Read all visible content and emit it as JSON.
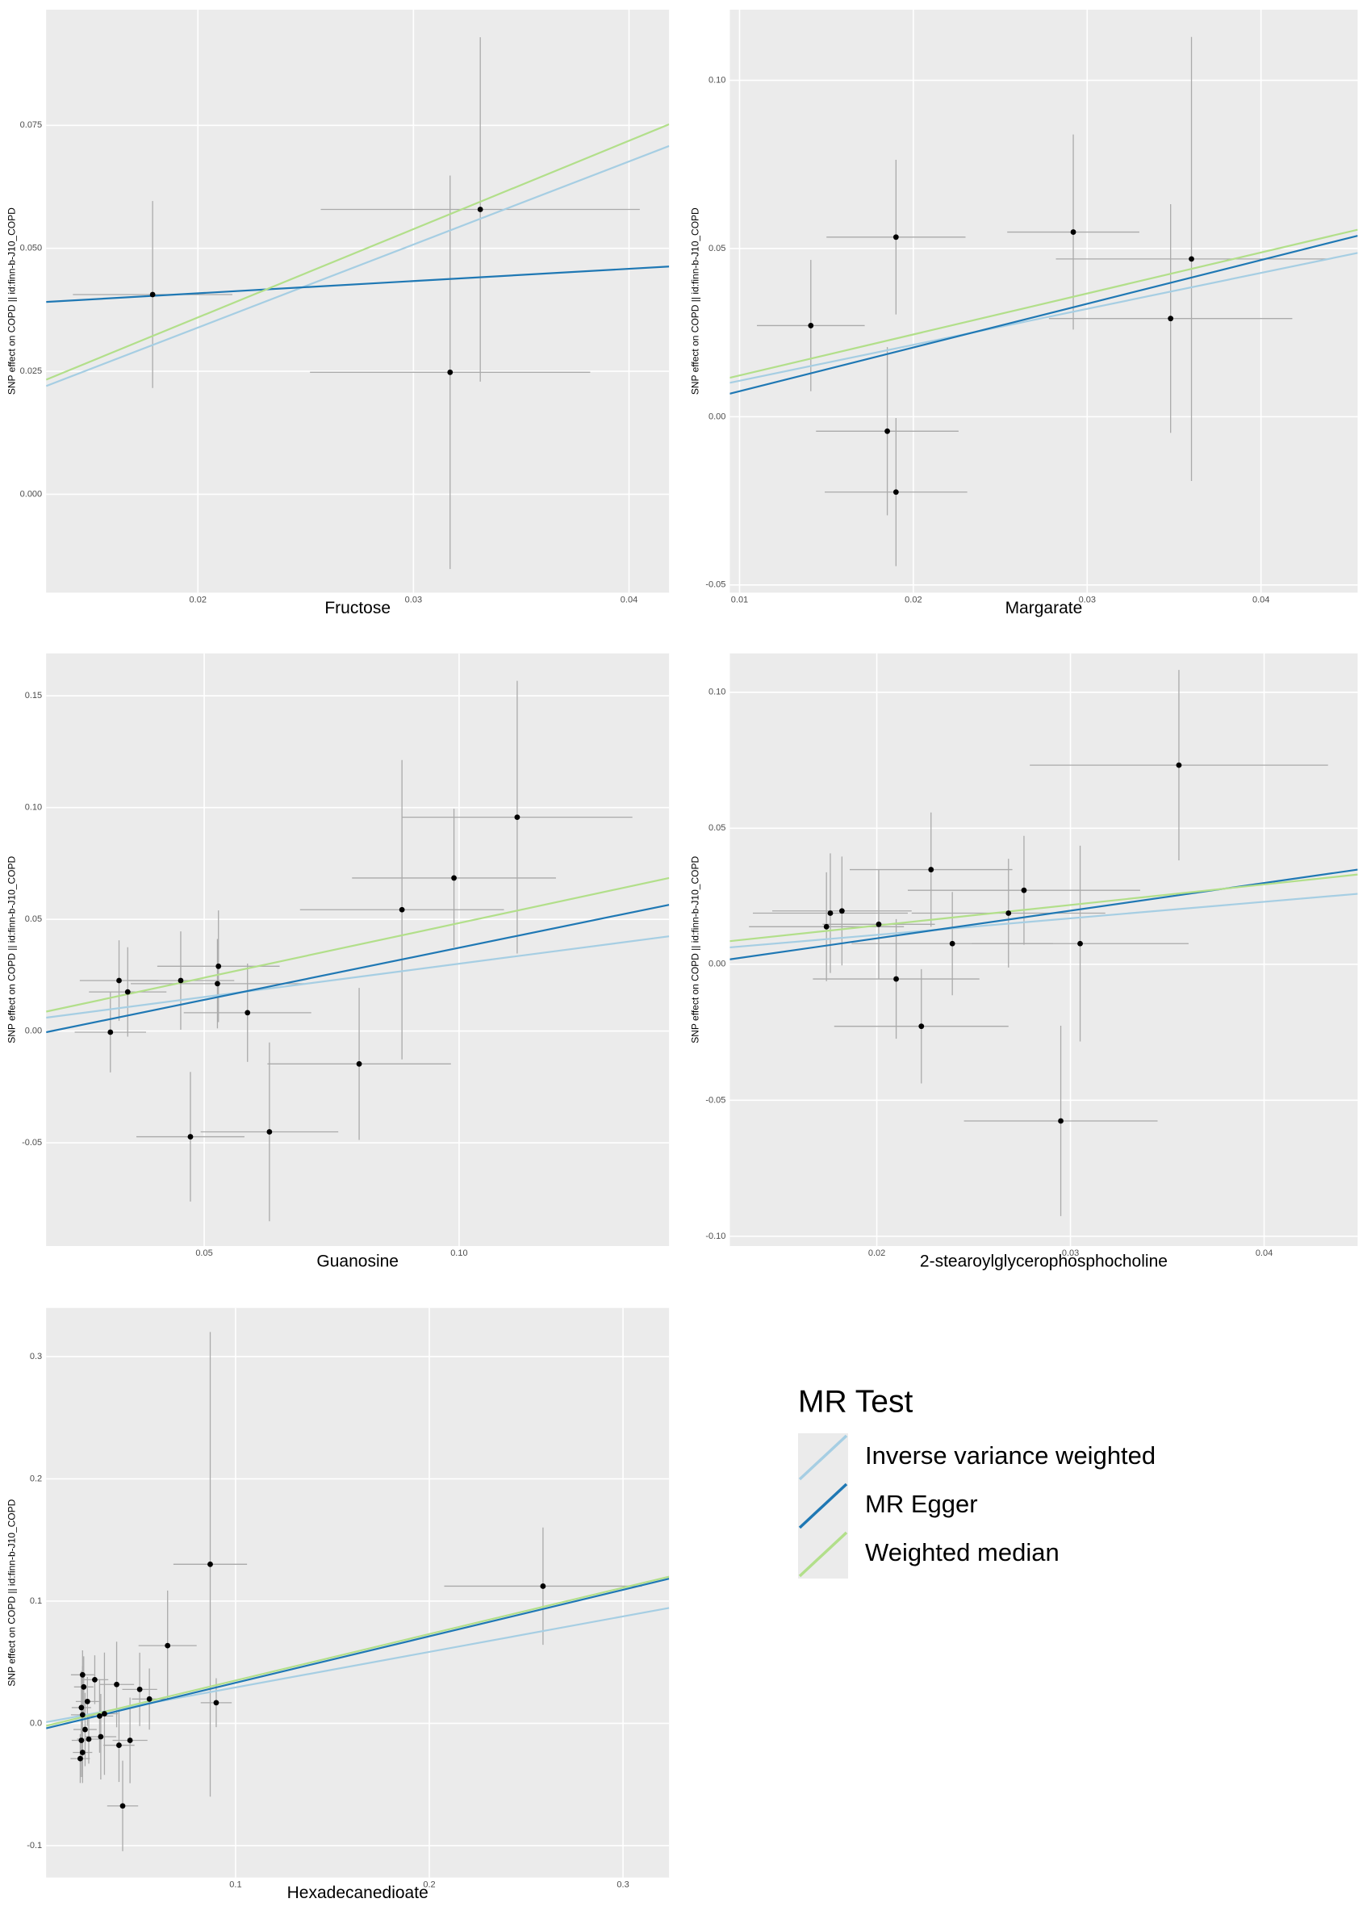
{
  "chart_data": [
    {
      "type": "scatter",
      "xlabel": "Fructose",
      "ylabel": "SNP effect on COPD || id:finn-b-J10_COPD",
      "xlim": [
        0.01296,
        0.04186
      ],
      "ylim": [
        -0.02,
        0.0985
      ],
      "xticks": [
        0.02,
        0.03,
        0.04
      ],
      "yticks": [
        {
          "value": 0,
          "label": "0.000"
        },
        {
          "value": 0.025,
          "label": "0.025"
        },
        {
          "value": 0.05,
          "label": "0.050"
        },
        {
          "value": 0.075,
          "label": "0.075"
        }
      ],
      "x": [
        0.0179,
        0.0331,
        0.0317
      ],
      "values": [
        0.0406,
        0.0579,
        0.0248
      ],
      "xerr": [
        0.0037,
        0.0074,
        0.0065
      ],
      "yerr": [
        0.019,
        0.035,
        0.04
      ],
      "fits": [
        {
          "x": [
            0.01296,
            0.04186
          ],
          "values": [
            0.022,
            0.0708
          ]
        },
        {
          "x": [
            0.01296,
            0.04186
          ],
          "values": [
            0.0391,
            0.0463
          ]
        },
        {
          "x": [
            0.01296,
            0.04186
          ],
          "values": [
            0.0233,
            0.0752
          ]
        }
      ]
    },
    {
      "type": "scatter",
      "xlabel": "Margarate",
      "ylabel": "SNP effect on COPD || id:finn-b-J10_COPD",
      "xlim": [
        0.00944,
        0.04556
      ],
      "ylim": [
        -0.0523,
        0.121
      ],
      "xticks": [
        0.01,
        0.02,
        0.03,
        0.04
      ],
      "yticks": [
        -0.05,
        {
          "value": 0,
          "label": "0.00"
        },
        0.05,
        {
          "value": 0.1,
          "label": "0.10"
        }
      ],
      "x": [
        0.0141,
        0.019,
        0.0185,
        0.019,
        0.0292,
        0.0348,
        0.036
      ],
      "values": [
        0.0271,
        0.0534,
        -0.0043,
        -0.0224,
        0.0549,
        0.0292,
        0.0469
      ],
      "xerr": [
        0.0031,
        0.004,
        0.0041,
        0.0041,
        0.0038,
        0.007,
        0.0078
      ],
      "yerr": [
        0.0195,
        0.023,
        0.025,
        0.022,
        0.029,
        0.034,
        0.066
      ],
      "fits": [
        {
          "x": [
            0.00944,
            0.04556
          ],
          "values": [
            0.0101,
            0.0487
          ]
        },
        {
          "x": [
            0.00944,
            0.04556
          ],
          "values": [
            0.00686,
            0.0538
          ]
        },
        {
          "x": [
            0.00944,
            0.04556
          ],
          "values": [
            0.0116,
            0.0556
          ]
        }
      ]
    },
    {
      "type": "scatter",
      "xlabel": "Guanosine",
      "ylabel": "SNP effect on COPD || id:finn-b-J10_COPD",
      "xlim": [
        0.019,
        0.1412
      ],
      "ylim": [
        -0.0962,
        0.169
      ],
      "xticks": [
        0.05,
        {
          "value": 0.1,
          "label": "0.10"
        }
      ],
      "yticks": [
        -0.05,
        {
          "value": 0,
          "label": "0.00"
        },
        0.05,
        {
          "value": 0.1,
          "label": "0.10"
        },
        0.15
      ],
      "x": [
        0.0316,
        0.0333,
        0.035,
        0.0454,
        0.0526,
        0.0528,
        0.0585,
        0.0473,
        0.0628,
        0.0804,
        0.0888,
        0.099,
        0.1114
      ],
      "values": [
        -0.0005,
        0.0226,
        0.0175,
        0.0226,
        0.0212,
        0.029,
        0.0082,
        -0.0473,
        -0.0451,
        -0.0147,
        0.0543,
        0.0685,
        0.0957
      ],
      "xerr": [
        0.007,
        0.0077,
        0.0076,
        0.0105,
        0.017,
        0.012,
        0.0125,
        0.0106,
        0.0135,
        0.018,
        0.02,
        0.02,
        0.0226
      ],
      "yerr": [
        0.018,
        0.018,
        0.02,
        0.022,
        0.02,
        0.025,
        0.022,
        0.029,
        0.04,
        0.034,
        0.067,
        0.031,
        0.061
      ],
      "fits": [
        {
          "x": [
            0.019,
            0.1412
          ],
          "values": [
            0.006,
            0.0424
          ]
        },
        {
          "x": [
            0.019,
            0.1412
          ],
          "values": [
            -0.0005,
            0.0565
          ]
        },
        {
          "x": [
            0.019,
            0.1412
          ],
          "values": [
            0.0087,
            0.0685
          ]
        }
      ]
    },
    {
      "type": "scatter",
      "xlabel": "2-stearoylglycerophosphocholine",
      "ylabel": "SNP effect on COPD || id:finn-b-J10_COPD",
      "xlim": [
        0.01241,
        0.04483
      ],
      "ylim": [
        -0.1036,
        0.1143
      ],
      "xticks": [
        0.02,
        0.03,
        0.04
      ],
      "yticks": [
        {
          "value": -0.1,
          "label": "-0.10"
        },
        -0.05,
        {
          "value": 0,
          "label": "0.00"
        },
        0.05,
        {
          "value": 0.1,
          "label": "0.10"
        }
      ],
      "x": [
        0.0176,
        0.0174,
        0.0182,
        0.0201,
        0.021,
        0.0228,
        0.0223,
        0.0239,
        0.0268,
        0.0276,
        0.0305,
        0.0356,
        0.0295
      ],
      "values": [
        0.0188,
        0.0138,
        0.0196,
        0.0147,
        -0.0054,
        0.0348,
        -0.0228,
        0.0076,
        0.0188,
        0.0272,
        0.0076,
        0.0732,
        -0.0576
      ],
      "xerr": [
        0.004,
        0.004,
        0.0036,
        0.0029,
        0.0043,
        0.0042,
        0.0045,
        0.0052,
        0.005,
        0.006,
        0.0056,
        0.0077,
        0.005
      ],
      "yerr": [
        0.022,
        0.02,
        0.02,
        0.02,
        0.022,
        0.021,
        0.021,
        0.019,
        0.02,
        0.02,
        0.036,
        0.035,
        0.035
      ],
      "fits": [
        {
          "x": [
            0.01241,
            0.04483
          ],
          "values": [
            0.0062,
            0.0259
          ]
        },
        {
          "x": [
            0.01241,
            0.04483
          ],
          "values": [
            0.0018,
            0.0348
          ]
        },
        {
          "x": [
            0.01241,
            0.04483
          ],
          "values": [
            0.0085,
            0.033
          ]
        }
      ]
    },
    {
      "type": "scatter",
      "xlabel": "Hexadecanedioate",
      "ylabel": "SNP effect on COPD || id:finn-b-J10_COPD",
      "xlim": [
        0.0022,
        0.3238
      ],
      "ylim": [
        -0.1261,
        0.3397
      ],
      "xticks": [
        0.1,
        0.2,
        0.3
      ],
      "yticks": [
        -0.1,
        {
          "value": 0,
          "label": "0.0"
        },
        0.1,
        0.2,
        0.3
      ],
      "x": [
        0.021,
        0.0216,
        0.0204,
        0.021,
        0.0223,
        0.0204,
        0.021,
        0.0198,
        0.0235,
        0.0242,
        0.0273,
        0.0298,
        0.0323,
        0.0304,
        0.0386,
        0.0398,
        0.0455,
        0.0417,
        0.0505,
        0.0555,
        0.0649,
        0.0869,
        0.09,
        0.2587
      ],
      "values": [
        0.0397,
        0.0298,
        0.0129,
        0.007,
        -0.005,
        -0.0139,
        -0.0238,
        -0.0288,
        0.0179,
        -0.0129,
        0.0357,
        0.006,
        0.0079,
        -0.0109,
        0.0318,
        -0.0179,
        -0.0139,
        -0.0675,
        0.0278,
        0.0199,
        0.0636,
        0.1301,
        0.0169,
        0.1122
      ],
      "xerr": [
        0.006,
        0.005,
        0.005,
        0.006,
        0.006,
        0.005,
        0.005,
        0.005,
        0.006,
        0.006,
        0.007,
        0.007,
        0.007,
        0.008,
        0.009,
        0.008,
        0.009,
        0.008,
        0.009,
        0.009,
        0.015,
        0.019,
        0.008,
        0.051
      ],
      "yerr": [
        0.02,
        0.025,
        0.03,
        0.04,
        0.03,
        0.03,
        0.025,
        0.02,
        0.02,
        0.02,
        0.02,
        0.03,
        0.05,
        0.035,
        0.035,
        0.03,
        0.035,
        0.037,
        0.03,
        0.025,
        0.045,
        0.19,
        0.02,
        0.048
      ],
      "fits": [
        {
          "x": [
            0.0022,
            0.3238
          ],
          "values": [
            0.001,
            0.0944
          ]
        },
        {
          "x": [
            0.0022,
            0.3238
          ],
          "values": [
            -0.004,
            0.1183
          ]
        },
        {
          "x": [
            0.0022,
            0.3238
          ],
          "values": [
            -0.002,
            0.12
          ]
        }
      ]
    }
  ],
  "legend": {
    "title": "MR Test",
    "series": [
      {
        "name": "Inverse variance weighted",
        "color": "#a6cee3"
      },
      {
        "name": "MR Egger",
        "color": "#1f78b4"
      },
      {
        "name": "Weighted median",
        "color": "#b2df8a"
      }
    ]
  }
}
